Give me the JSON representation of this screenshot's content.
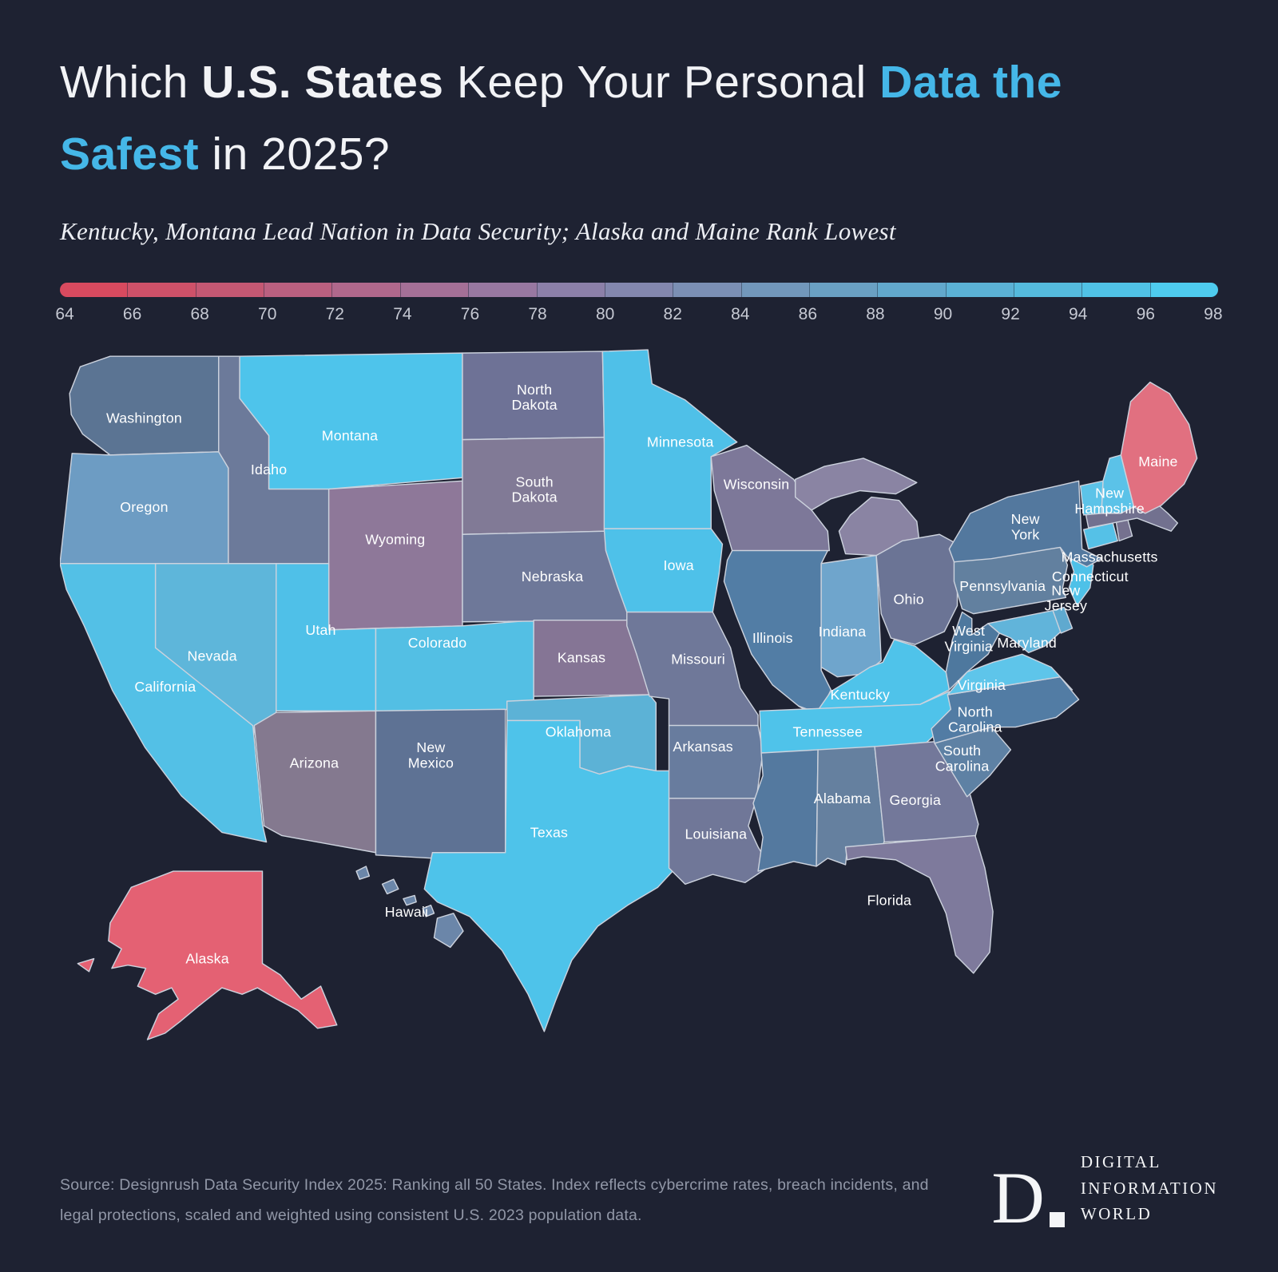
{
  "title": {
    "segments": [
      {
        "text": "Which ",
        "bold": false,
        "accent": false
      },
      {
        "text": "U.S. States",
        "bold": true,
        "accent": false
      },
      {
        "text": " Keep Your Personal ",
        "bold": false,
        "accent": false
      },
      {
        "text": "Data the Safest",
        "bold": true,
        "accent": true
      },
      {
        "text": " in 2025?",
        "bold": false,
        "accent": false
      }
    ]
  },
  "subtitle": "Kentucky, Montana Lead Nation in Data Security; Alaska and Maine Rank Lowest",
  "legend": {
    "ticks": [
      "64",
      "66",
      "68",
      "70",
      "72",
      "74",
      "76",
      "78",
      "80",
      "82",
      "84",
      "86",
      "88",
      "90",
      "92",
      "94",
      "96",
      "98"
    ],
    "colors": [
      "#d84a5f",
      "#ce5169",
      "#c45873",
      "#ba6080",
      "#b0688c",
      "#a47097",
      "#9878a1",
      "#8c80a9",
      "#8387ae",
      "#7b8fb4",
      "#7297bb",
      "#6aa0c3",
      "#62a8cc",
      "#5bb1d5",
      "#55badd",
      "#50c2e6",
      "#4ecbee"
    ]
  },
  "colors": {
    "background": "#1e2232",
    "accent": "#45b7e8",
    "map_border": "#ccd2dd",
    "state_label": "#ffffff",
    "tick_label": "#c6c9d3",
    "footer_text": "#9197a7"
  },
  "map": {
    "states": [
      {
        "id": "WA",
        "name": "Washington",
        "label": "Washington",
        "color": "#5b7493"
      },
      {
        "id": "OR",
        "name": "Oregon",
        "label": "Oregon",
        "color": "#6d9cc3"
      },
      {
        "id": "CA",
        "name": "California",
        "label": "California",
        "color": "#53c0e6"
      },
      {
        "id": "NV",
        "name": "Nevada",
        "label": "Nevada",
        "color": "#5eb6da"
      },
      {
        "id": "ID",
        "name": "Idaho",
        "label": "Idaho",
        "color": "#6c7a9a"
      },
      {
        "id": "MT",
        "name": "Montana",
        "label": "Montana",
        "color": "#4ec4eb"
      },
      {
        "id": "WY",
        "name": "Wyoming",
        "label": "Wyoming",
        "color": "#8e7899"
      },
      {
        "id": "UT",
        "name": "Utah",
        "label": "Utah",
        "color": "#4fc0e8"
      },
      {
        "id": "CO",
        "name": "Colorado",
        "label": "Colorado",
        "color": "#53bfe4"
      },
      {
        "id": "AZ",
        "name": "Arizona",
        "label": "Arizona",
        "color": "#84798f"
      },
      {
        "id": "NM",
        "name": "New Mexico",
        "label": "New Mexico",
        "color": "#5e7294"
      },
      {
        "id": "ND",
        "name": "North Dakota",
        "label": "North Dakota",
        "color": "#6e7296"
      },
      {
        "id": "SD",
        "name": "South Dakota",
        "label": "South Dakota",
        "color": "#817a96"
      },
      {
        "id": "NE",
        "name": "Nebraska",
        "label": "Nebraska",
        "color": "#6e7899"
      },
      {
        "id": "KS",
        "name": "Kansas",
        "label": "Kansas",
        "color": "#857595"
      },
      {
        "id": "OK",
        "name": "Oklahoma",
        "label": "Oklahoma",
        "color": "#5cb2d6"
      },
      {
        "id": "TX",
        "name": "Texas",
        "label": "Texas",
        "color": "#4ec3ea"
      },
      {
        "id": "MN",
        "name": "Minnesota",
        "label": "Minnesota",
        "color": "#4fc0e8"
      },
      {
        "id": "IA",
        "name": "Iowa",
        "label": "Iowa",
        "color": "#4ec1e9"
      },
      {
        "id": "MO",
        "name": "Missouri",
        "label": "Missouri",
        "color": "#6f7899"
      },
      {
        "id": "AR",
        "name": "Arkansas",
        "label": "Arkansas",
        "color": "#687c9e"
      },
      {
        "id": "LA",
        "name": "Louisiana",
        "label": "Louisiana",
        "color": "#707798"
      },
      {
        "id": "WI",
        "name": "Wisconsin",
        "label": "Wisconsin",
        "color": "#7d7899"
      },
      {
        "id": "MI",
        "name": "Michigan",
        "label": null,
        "color": "#8a84a3"
      },
      {
        "id": "IL",
        "name": "Illinois",
        "label": "Illinois",
        "color": "#527da5"
      },
      {
        "id": "IN",
        "name": "Indiana",
        "label": "Indiana",
        "color": "#6fa5cc"
      },
      {
        "id": "OH",
        "name": "Ohio",
        "label": "Ohio",
        "color": "#6b7495"
      },
      {
        "id": "KY",
        "name": "Kentucky",
        "label": "Kentucky",
        "color": "#4fc3ea"
      },
      {
        "id": "TN",
        "name": "Tennessee",
        "label": "Tennessee",
        "color": "#4fc3ea"
      },
      {
        "id": "MS",
        "name": "Mississippi",
        "label": null,
        "color": "#54799f"
      },
      {
        "id": "AL",
        "name": "Alabama",
        "label": "Alabama",
        "color": "#65809f"
      },
      {
        "id": "GA",
        "name": "Georgia",
        "label": "Georgia",
        "color": "#73789a"
      },
      {
        "id": "FL",
        "name": "Florida",
        "label": "Florida",
        "color": "#7e7a9c"
      },
      {
        "id": "SC",
        "name": "South Carolina",
        "label": "South Carolina",
        "color": "#5e81a4"
      },
      {
        "id": "NC",
        "name": "North Carolina",
        "label": "North Carolina",
        "color": "#527ca4"
      },
      {
        "id": "VA",
        "name": "Virginia",
        "label": "Virginia",
        "color": "#5ec5ea"
      },
      {
        "id": "WV",
        "name": "West Virginia",
        "label": "West Virginia",
        "color": "#4e789e"
      },
      {
        "id": "MD",
        "name": "Maryland",
        "label": "Maryland",
        "color": "#61b4da"
      },
      {
        "id": "DE",
        "name": "Delaware",
        "label": null,
        "color": "#5fa9cf"
      },
      {
        "id": "PA",
        "name": "Pennsylvania",
        "label": "Pennsylvania",
        "color": "#62809f"
      },
      {
        "id": "NJ",
        "name": "New Jersey",
        "label": "New Jersey",
        "color": "#4ec1e8"
      },
      {
        "id": "NY",
        "name": "New York",
        "label": "New York",
        "color": "#53789e"
      },
      {
        "id": "CT",
        "name": "Connecticut",
        "label": "Connecticut",
        "color": "#55c1e7"
      },
      {
        "id": "RI",
        "name": "Rhode Island",
        "label": null,
        "color": "#75718f"
      },
      {
        "id": "MA",
        "name": "Massachusetts",
        "label": "Massachusetts",
        "color": "#72718f"
      },
      {
        "id": "VT",
        "name": "Vermont",
        "label": null,
        "color": "#5cc3e8"
      },
      {
        "id": "NH",
        "name": "New Hampshire",
        "label": "New Hampshire",
        "color": "#5bc2e8"
      },
      {
        "id": "ME",
        "name": "Maine",
        "label": "Maine",
        "color": "#e17080"
      },
      {
        "id": "AK",
        "name": "Alaska",
        "label": "Alaska",
        "color": "#e46173"
      },
      {
        "id": "HI",
        "name": "Hawaii",
        "label": "Hawaii",
        "color": "#6b86a9"
      }
    ]
  },
  "footer": {
    "source": "Source: Designrush Data Security Index 2025: Ranking all 50 States. Index reflects cybercrime rates, breach incidents, and legal protections, scaled and weighted using consistent U.S. 2023 population data."
  },
  "logo": {
    "mark": "D",
    "lines": [
      "DIGITAL",
      "INFORMATION",
      "WORLD"
    ]
  }
}
